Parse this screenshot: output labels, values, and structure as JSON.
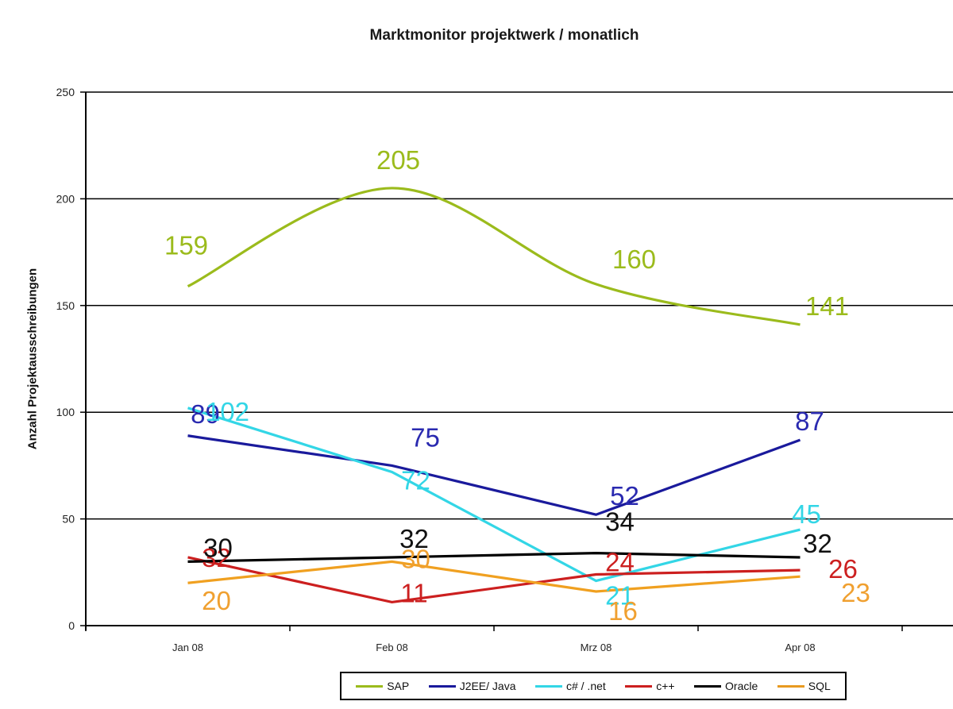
{
  "chart_data": {
    "type": "line",
    "title": "Marktmonitor projektwerk / monatlich",
    "xlabel": "",
    "ylabel": "Anzahl Projektausschreibungen",
    "ylim": [
      0,
      250
    ],
    "yticks": [
      "0",
      "50",
      "100",
      "150",
      "200",
      "250"
    ],
    "grid": true,
    "legend_position": "bottom",
    "categories": [
      "Jan 08",
      "Feb 08",
      "Mrz 08",
      "Apr 08"
    ],
    "series": [
      {
        "name": "SAP",
        "color": "#9bbb1c",
        "smooth": true,
        "values": [
          159,
          205,
          160,
          141
        ]
      },
      {
        "name": "J2EE/ Java",
        "color": "#1a1a9c",
        "values": [
          89,
          75,
          52,
          87
        ]
      },
      {
        "name": "c# / .net",
        "color": "#33d6e6",
        "values": [
          102,
          72,
          21,
          45
        ]
      },
      {
        "name": "c++",
        "color": "#cc1f1f",
        "values": [
          32,
          11,
          24,
          26
        ]
      },
      {
        "name": "Oracle",
        "color": "#000000",
        "values": [
          30,
          32,
          34,
          32
        ]
      },
      {
        "name": "SQL",
        "color": "#f0a020",
        "values": [
          20,
          30,
          16,
          23
        ]
      }
    ]
  },
  "legend": {
    "items": [
      {
        "label": "SAP",
        "color": "#9bbb1c"
      },
      {
        "label": "J2EE/ Java",
        "color": "#1a1a9c"
      },
      {
        "label": "c# / .net",
        "color": "#33d6e6"
      },
      {
        "label": "c++",
        "color": "#cc1f1f"
      },
      {
        "label": "Oracle",
        "color": "#000000"
      },
      {
        "label": "SQL",
        "color": "#e89a20"
      }
    ]
  }
}
